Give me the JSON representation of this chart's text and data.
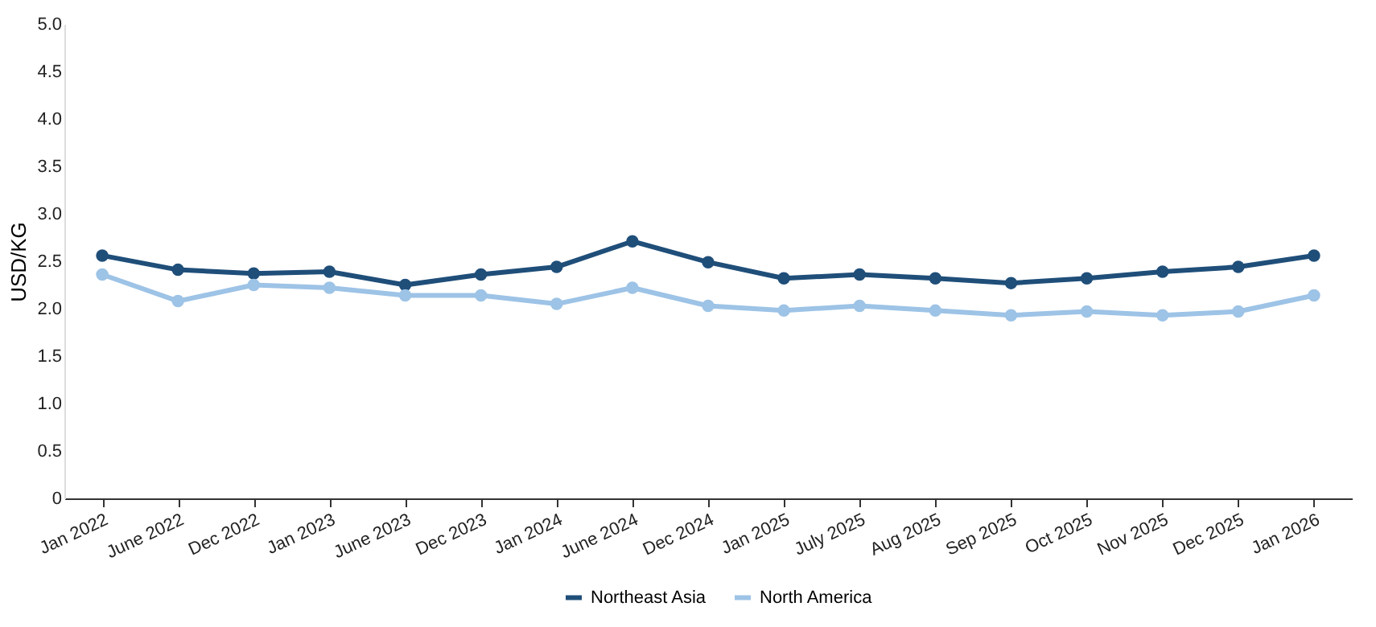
{
  "chart_data": {
    "type": "line",
    "ylabel": "USD/KG",
    "categories": [
      "Jan 2022",
      "June 2022",
      "Dec 2022",
      "Jan 2023",
      "June 2023",
      "Dec 2023",
      "Jan 2024",
      "June 2024",
      "Dec 2024",
      "Jan 2025",
      "July 2025",
      "Aug 2025",
      "Sep 2025",
      "Oct 2025",
      "Nov 2025",
      "Dec 2025",
      "Jan 2026"
    ],
    "series": [
      {
        "name": "Northeast Asia",
        "color": "#1f4e79",
        "values": [
          2.56,
          2.41,
          2.37,
          2.39,
          2.25,
          2.36,
          2.44,
          2.71,
          2.49,
          2.32,
          2.36,
          2.32,
          2.27,
          2.32,
          2.39,
          2.44,
          2.56
        ]
      },
      {
        "name": "North America",
        "color": "#9dc3e6",
        "values": [
          2.36,
          2.08,
          2.25,
          2.22,
          2.14,
          2.14,
          2.05,
          2.22,
          2.03,
          1.98,
          2.03,
          1.98,
          1.93,
          1.97,
          1.93,
          1.97,
          2.14
        ]
      }
    ],
    "ylim": [
      0,
      5
    ],
    "yticks": [
      0,
      0.5,
      {
        "value": 1,
        "label": "1.0"
      },
      1.5,
      {
        "value": 2,
        "label": "2.0"
      },
      2.5,
      {
        "value": 3,
        "label": "3.0"
      },
      3.5,
      {
        "value": 4,
        "label": "4.0"
      },
      4.5,
      {
        "value": 5,
        "label": "5.0"
      }
    ],
    "marker": "circle",
    "line_style": "solid",
    "legend": "bottom",
    "grid": false
  }
}
